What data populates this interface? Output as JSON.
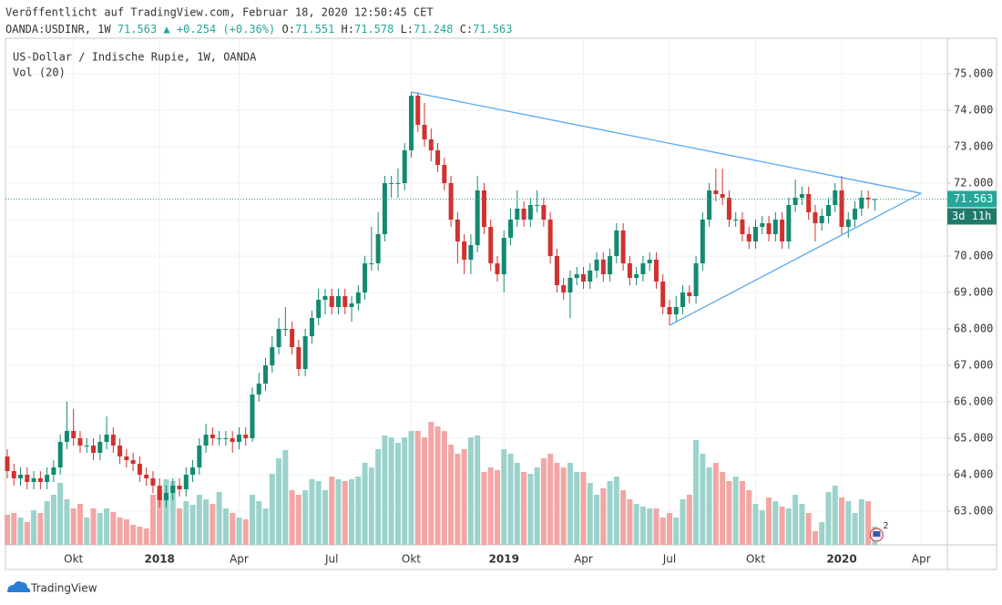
{
  "header": {
    "published": "Veröffentlicht auf TradingView.com, Februar 18, 2020 12:50:45 CET",
    "symbol": "OANDA:USDINR, 1W",
    "last": "71.563",
    "change": "▲ +0.254 (+0.36%)",
    "ohlc": [
      {
        "key": "O:",
        "value": "71.551"
      },
      {
        "key": "H:",
        "value": "71.578"
      },
      {
        "key": "L:",
        "value": "71.248"
      },
      {
        "key": "C:",
        "value": "71.563"
      }
    ]
  },
  "chart_data": {
    "type": "candlestick",
    "title": "US-Dollar / Indische Rupie, 1W, OANDA",
    "volume_title": "Vol (20)",
    "countdown": "3d 11h",
    "event_count": 2,
    "up_color": "#138a70",
    "down_color": "#d0322f",
    "volume_up_color": "#9bd3cc",
    "volume_down_color": "#f3a6a4",
    "trendline_color": "#5aa9f0",
    "grid": true,
    "ylim": [
      62.075,
      75.975
    ],
    "yticks": [
      {
        "value": 63,
        "label": "63.000"
      },
      {
        "value": 64,
        "label": "64.000"
      },
      {
        "value": 65,
        "label": "65.000"
      },
      {
        "value": 66,
        "label": "66.000"
      },
      {
        "value": 67,
        "label": "67.000"
      },
      {
        "value": 68,
        "label": "68.000"
      },
      {
        "value": 69,
        "label": "69.000"
      },
      {
        "value": 70,
        "label": "70.000"
      },
      {
        "value": 71,
        "label": "71.000"
      },
      {
        "value": 72,
        "label": "72.000"
      },
      {
        "value": 73,
        "label": "73.000"
      },
      {
        "value": 74,
        "label": "74.000"
      },
      {
        "value": 75,
        "label": "75.000"
      }
    ],
    "vlim": [
      0,
      160
    ],
    "categories": [
      null,
      null,
      null,
      null,
      null,
      null,
      null,
      null,
      null,
      null,
      "Okt",
      null,
      null,
      null,
      null,
      null,
      null,
      null,
      null,
      null,
      null,
      null,
      null,
      "2018",
      null,
      null,
      null,
      null,
      null,
      null,
      null,
      null,
      null,
      null,
      null,
      "Apr",
      null,
      null,
      null,
      null,
      null,
      null,
      null,
      null,
      null,
      null,
      null,
      null,
      null,
      "Jul",
      null,
      null,
      null,
      null,
      null,
      null,
      null,
      null,
      null,
      null,
      null,
      "Okt",
      null,
      null,
      null,
      null,
      null,
      null,
      null,
      null,
      null,
      null,
      null,
      null,
      null,
      "2019",
      null,
      null,
      null,
      null,
      null,
      null,
      null,
      null,
      null,
      null,
      null,
      "Apr",
      null,
      null,
      null,
      null,
      null,
      null,
      null,
      null,
      null,
      null,
      null,
      null,
      "Jul",
      null,
      null,
      null,
      null,
      null,
      null,
      null,
      null,
      null,
      null,
      null,
      null,
      "Okt",
      null,
      null,
      null,
      null,
      null,
      null,
      null,
      null,
      null,
      null,
      null,
      null,
      "2020",
      null,
      null,
      null,
      null,
      null,
      null,
      null,
      null,
      null,
      null,
      null,
      "Apr"
    ],
    "ohlc": [
      [
        64.5,
        64.7,
        63.9,
        64.1
      ],
      [
        64.1,
        64.3,
        63.7,
        63.9
      ],
      [
        63.9,
        64.2,
        63.7,
        64.0
      ],
      [
        64.0,
        64.2,
        63.6,
        63.8
      ],
      [
        63.8,
        64.1,
        63.6,
        63.9
      ],
      [
        63.9,
        64.1,
        63.6,
        63.8
      ],
      [
        63.8,
        64.2,
        63.6,
        64.0
      ],
      [
        64.0,
        64.4,
        63.8,
        64.2
      ],
      [
        64.2,
        65.1,
        64.0,
        64.9
      ],
      [
        64.9,
        66.0,
        64.7,
        65.2
      ],
      [
        65.2,
        65.8,
        64.8,
        65.0
      ],
      [
        65.0,
        65.2,
        64.6,
        64.8
      ],
      [
        64.8,
        65.0,
        64.6,
        64.8
      ],
      [
        64.8,
        65.0,
        64.4,
        64.6
      ],
      [
        64.6,
        65.1,
        64.4,
        64.9
      ],
      [
        64.9,
        65.6,
        64.7,
        65.1
      ],
      [
        65.1,
        65.3,
        64.6,
        64.8
      ],
      [
        64.8,
        65.0,
        64.3,
        64.5
      ],
      [
        64.5,
        64.7,
        64.2,
        64.4
      ],
      [
        64.4,
        64.6,
        64.1,
        64.3
      ],
      [
        64.3,
        64.5,
        63.8,
        64.0
      ],
      [
        64.0,
        64.2,
        63.7,
        63.9
      ],
      [
        63.9,
        64.1,
        63.5,
        63.7
      ],
      [
        63.7,
        63.9,
        63.1,
        63.3
      ],
      [
        63.3,
        63.7,
        63.1,
        63.5
      ],
      [
        63.5,
        63.9,
        63.3,
        63.7
      ],
      [
        63.7,
        63.9,
        63.4,
        63.6
      ],
      [
        63.6,
        64.2,
        63.4,
        64.0
      ],
      [
        64.0,
        64.4,
        63.8,
        64.2
      ],
      [
        64.2,
        65.0,
        64.0,
        64.8
      ],
      [
        64.8,
        65.4,
        64.6,
        65.1
      ],
      [
        65.1,
        65.3,
        64.8,
        65.0
      ],
      [
        65.0,
        65.2,
        64.8,
        65.0
      ],
      [
        65.0,
        65.2,
        64.8,
        65.0
      ],
      [
        65.0,
        65.2,
        64.6,
        64.9
      ],
      [
        64.9,
        65.3,
        64.7,
        65.1
      ],
      [
        65.1,
        65.3,
        64.8,
        65.0
      ],
      [
        65.0,
        66.4,
        64.9,
        66.2
      ],
      [
        66.2,
        66.8,
        66.0,
        66.5
      ],
      [
        66.5,
        67.2,
        66.3,
        67.0
      ],
      [
        67.0,
        67.8,
        66.8,
        67.5
      ],
      [
        67.5,
        68.3,
        67.3,
        68.0
      ],
      [
        68.0,
        68.6,
        67.8,
        68.0
      ],
      [
        68.0,
        68.2,
        67.3,
        67.5
      ],
      [
        67.5,
        67.7,
        66.7,
        66.9
      ],
      [
        66.9,
        68.0,
        66.7,
        67.8
      ],
      [
        67.8,
        68.5,
        67.6,
        68.3
      ],
      [
        68.3,
        69.1,
        68.1,
        68.8
      ],
      [
        68.8,
        69.1,
        68.4,
        68.9
      ],
      [
        68.9,
        69.1,
        68.4,
        68.6
      ],
      [
        68.6,
        69.1,
        68.4,
        68.9
      ],
      [
        68.9,
        69.1,
        68.4,
        68.6
      ],
      [
        68.6,
        68.9,
        68.2,
        68.7
      ],
      [
        68.7,
        69.2,
        68.5,
        69.0
      ],
      [
        69.0,
        70.0,
        68.8,
        69.8
      ],
      [
        69.8,
        70.8,
        69.6,
        69.8
      ],
      [
        69.8,
        71.2,
        69.6,
        70.6
      ],
      [
        70.6,
        72.2,
        70.4,
        72.0
      ],
      [
        72.0,
        72.2,
        71.6,
        72.0
      ],
      [
        72.0,
        72.4,
        71.6,
        72.0
      ],
      [
        72.0,
        73.1,
        71.8,
        72.9
      ],
      [
        72.9,
        74.5,
        72.7,
        74.4
      ],
      [
        74.4,
        74.5,
        73.4,
        73.6
      ],
      [
        73.6,
        74.2,
        73.0,
        73.2
      ],
      [
        73.2,
        73.5,
        72.6,
        72.9
      ],
      [
        72.9,
        73.1,
        72.3,
        72.5
      ],
      [
        72.5,
        72.7,
        71.8,
        72.0
      ],
      [
        72.0,
        72.2,
        70.8,
        71.0
      ],
      [
        71.0,
        71.2,
        69.8,
        70.4
      ],
      [
        70.4,
        70.6,
        69.5,
        69.9
      ],
      [
        69.9,
        70.6,
        69.5,
        70.3
      ],
      [
        70.3,
        72.2,
        70.1,
        71.8
      ],
      [
        71.8,
        72.0,
        70.6,
        70.8
      ],
      [
        70.8,
        71.0,
        69.6,
        69.8
      ],
      [
        69.8,
        70.0,
        69.3,
        69.5
      ],
      [
        69.5,
        70.7,
        69.0,
        70.5
      ],
      [
        70.5,
        71.3,
        70.3,
        71.0
      ],
      [
        71.0,
        71.8,
        70.8,
        71.3
      ],
      [
        71.3,
        71.5,
        70.8,
        71.0
      ],
      [
        71.0,
        71.6,
        70.8,
        71.4
      ],
      [
        71.4,
        71.8,
        71.2,
        71.4
      ],
      [
        71.4,
        71.6,
        70.8,
        71.0
      ],
      [
        71.0,
        71.2,
        69.8,
        70.0
      ],
      [
        70.0,
        70.2,
        69.0,
        69.2
      ],
      [
        69.2,
        69.4,
        68.8,
        69.0
      ],
      [
        69.0,
        69.6,
        68.3,
        69.4
      ],
      [
        69.4,
        69.7,
        69.2,
        69.5
      ],
      [
        69.5,
        69.7,
        69.1,
        69.3
      ],
      [
        69.3,
        69.8,
        69.1,
        69.6
      ],
      [
        69.6,
        70.1,
        69.4,
        69.9
      ],
      [
        69.9,
        70.1,
        69.3,
        69.5
      ],
      [
        69.5,
        70.2,
        69.3,
        70.0
      ],
      [
        70.0,
        70.9,
        69.8,
        70.7
      ],
      [
        70.7,
        70.9,
        69.6,
        69.8
      ],
      [
        69.8,
        70.0,
        69.2,
        69.4
      ],
      [
        69.4,
        69.7,
        69.2,
        69.5
      ],
      [
        69.5,
        70.0,
        69.3,
        69.8
      ],
      [
        69.8,
        70.1,
        69.6,
        69.9
      ],
      [
        69.9,
        70.1,
        69.1,
        69.3
      ],
      [
        69.3,
        69.5,
        68.4,
        68.6
      ],
      [
        68.6,
        68.8,
        68.1,
        68.4
      ],
      [
        68.4,
        68.9,
        68.2,
        68.6
      ],
      [
        68.6,
        69.2,
        68.4,
        69.0
      ],
      [
        69.0,
        69.2,
        68.7,
        68.9
      ],
      [
        68.9,
        70.0,
        68.7,
        69.8
      ],
      [
        69.8,
        71.2,
        69.6,
        71.0
      ],
      [
        71.0,
        72.0,
        70.8,
        71.8
      ],
      [
        71.8,
        72.4,
        71.5,
        71.7
      ],
      [
        71.7,
        72.4,
        71.4,
        71.6
      ],
      [
        71.6,
        71.8,
        70.8,
        71.0
      ],
      [
        71.0,
        71.2,
        70.8,
        71.0
      ],
      [
        71.0,
        71.2,
        70.4,
        70.6
      ],
      [
        70.6,
        70.8,
        70.2,
        70.4
      ],
      [
        70.4,
        71.0,
        70.2,
        70.8
      ],
      [
        70.8,
        71.1,
        70.6,
        70.9
      ],
      [
        70.9,
        71.1,
        70.4,
        70.6
      ],
      [
        70.6,
        71.2,
        70.4,
        71.0
      ],
      [
        71.0,
        71.2,
        70.2,
        70.4
      ],
      [
        70.4,
        71.6,
        70.2,
        71.4
      ],
      [
        71.4,
        72.1,
        71.2,
        71.6
      ],
      [
        71.6,
        71.9,
        71.4,
        71.7
      ],
      [
        71.7,
        71.9,
        71.0,
        71.2
      ],
      [
        71.2,
        71.4,
        70.4,
        70.9
      ],
      [
        70.9,
        71.3,
        70.7,
        71.1
      ],
      [
        71.1,
        71.6,
        70.9,
        71.4
      ],
      [
        71.4,
        72.0,
        71.2,
        71.8
      ],
      [
        71.8,
        72.2,
        70.6,
        70.8
      ],
      [
        70.8,
        71.2,
        70.5,
        71.0
      ],
      [
        71.0,
        71.5,
        70.8,
        71.3
      ],
      [
        71.3,
        71.8,
        71.1,
        71.6
      ],
      [
        71.6,
        71.8,
        71.3,
        71.551
      ],
      [
        71.551,
        71.578,
        71.248,
        71.563
      ],
      null,
      null,
      null,
      null,
      null,
      null,
      null
    ],
    "volumes": [
      33,
      35,
      30,
      25,
      38,
      35,
      48,
      55,
      68,
      50,
      40,
      45,
      30,
      40,
      35,
      40,
      36,
      30,
      28,
      22,
      20,
      18,
      55,
      60,
      72,
      70,
      40,
      48,
      44,
      55,
      50,
      45,
      58,
      40,
      35,
      30,
      28,
      55,
      48,
      40,
      78,
      95,
      104,
      60,
      55,
      60,
      72,
      70,
      60,
      75,
      72,
      70,
      72,
      75,
      90,
      85,
      105,
      120,
      118,
      112,
      118,
      125,
      125,
      118,
      135,
      130,
      125,
      110,
      100,
      105,
      118,
      120,
      80,
      85,
      82,
      105,
      100,
      90,
      80,
      78,
      85,
      95,
      100,
      90,
      85,
      90,
      80,
      80,
      68,
      55,
      62,
      70,
      75,
      60,
      50,
      45,
      42,
      40,
      40,
      30,
      35,
      30,
      50,
      55,
      115,
      100,
      85,
      90,
      80,
      70,
      75,
      70,
      60,
      45,
      38,
      52,
      48,
      42,
      40,
      55,
      45,
      35,
      15,
      25,
      58,
      65,
      52,
      48,
      35,
      50,
      48,
      20,
      null,
      null,
      null,
      null,
      null,
      null,
      null
    ],
    "trendlines": [
      {
        "start": {
          "index": 61,
          "price": 74.5
        },
        "end": {
          "index": 138,
          "price": 71.72
        }
      },
      {
        "start": {
          "index": 100,
          "price": 68.1
        },
        "end": {
          "index": 138,
          "price": 71.72
        }
      }
    ]
  },
  "footer": {
    "logo": "TradingView"
  }
}
